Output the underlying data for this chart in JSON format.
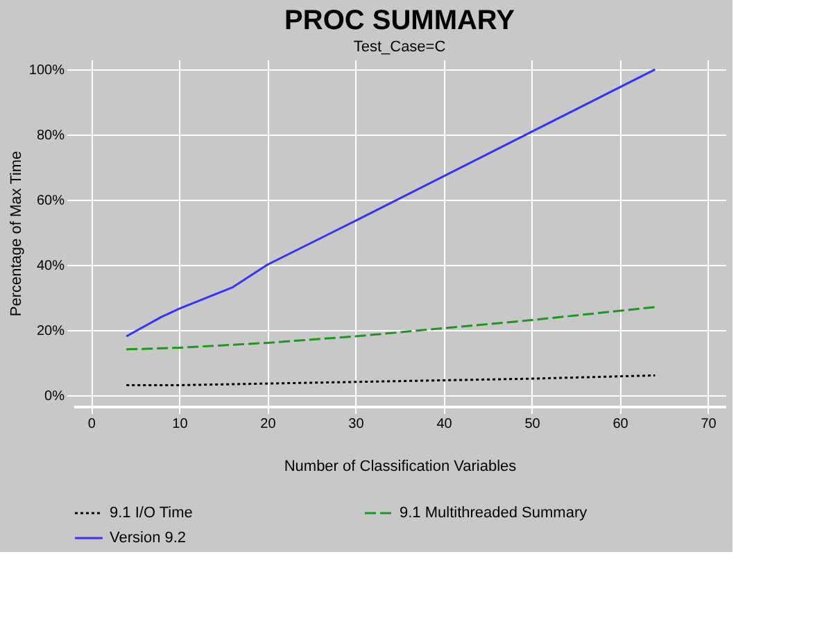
{
  "chart_data": {
    "type": "line",
    "title": "PROC SUMMARY",
    "subtitle": "Test_Case=C",
    "xlabel": "Number of Classification Variables",
    "ylabel": "Percentage of Max Time",
    "series": [
      {
        "name": "9.1 I/O Time",
        "color": "#000000",
        "line_style": "dotted",
        "x": [
          4,
          10,
          20,
          30,
          40,
          50,
          64
        ],
        "values": [
          3,
          3,
          3.5,
          4,
          4.5,
          5,
          6
        ]
      },
      {
        "name": "9.1 Multithreaded Summary",
        "color": "#1a9a1a",
        "line_style": "dashed",
        "x": [
          4,
          10,
          20,
          30,
          40,
          50,
          64
        ],
        "values": [
          14,
          14.5,
          16,
          18,
          20.5,
          23,
          27
        ]
      },
      {
        "name": "Version 9.2",
        "color": "#3333ff",
        "line_style": "solid",
        "x": [
          4,
          8,
          10,
          16,
          20,
          30,
          64
        ],
        "values": [
          18,
          24,
          26.5,
          33,
          40,
          53.5,
          100
        ]
      }
    ],
    "xlim": [
      -2,
      72
    ],
    "xticks": [
      0,
      10,
      20,
      30,
      40,
      50,
      60,
      70
    ],
    "ylim": [
      -3.5,
      103
    ],
    "yticks": [
      {
        "value": 0,
        "label": "0%"
      },
      {
        "value": 20,
        "label": "20%"
      },
      {
        "value": 40,
        "label": "40%"
      },
      {
        "value": 60,
        "label": "60%"
      },
      {
        "value": 80,
        "label": "80%"
      },
      {
        "value": 100,
        "label": "100%"
      }
    ],
    "grid": true,
    "legend": "bottom",
    "marker": "none"
  }
}
